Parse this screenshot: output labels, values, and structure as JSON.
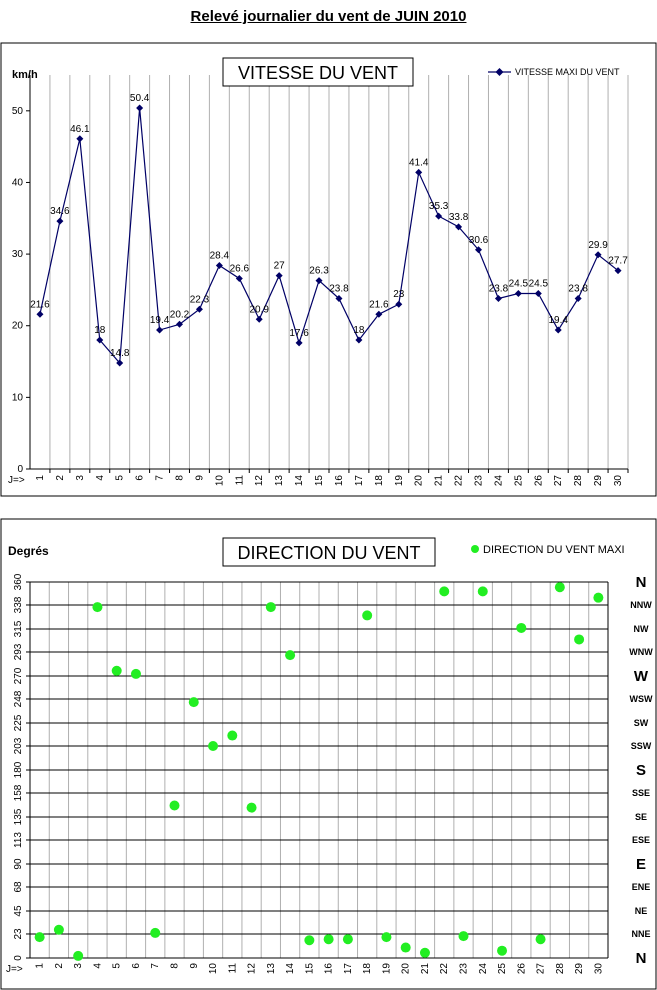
{
  "page_title": "Relevé journalier du vent de JUIN 2010",
  "chart_data": [
    {
      "type": "line",
      "title": "VITESSE DU VENT",
      "ylabel": "km/h",
      "xlabel": "J=>",
      "ylim": [
        0,
        55
      ],
      "yticks": [
        0,
        10,
        20,
        30,
        40,
        50
      ],
      "grid": "vertical",
      "legend_position": "top-right",
      "categories": [
        "1",
        "2",
        "3",
        "4",
        "5",
        "6",
        "7",
        "8",
        "9",
        "10",
        "11",
        "12",
        "13",
        "14",
        "15",
        "16",
        "17",
        "18",
        "19",
        "20",
        "21",
        "22",
        "23",
        "24",
        "25",
        "26",
        "27",
        "28",
        "29",
        "30"
      ],
      "series": [
        {
          "name": "VITESSE MAXI DU VENT",
          "color": "#000066",
          "marker": "diamond",
          "values": [
            21.6,
            34.6,
            46.1,
            18,
            14.8,
            50.4,
            19.4,
            20.2,
            22.3,
            28.4,
            26.6,
            20.9,
            27,
            17.6,
            26.3,
            23.8,
            18,
            21.6,
            23,
            41.4,
            35.3,
            33.8,
            30.6,
            23.8,
            24.5,
            24.5,
            19.4,
            23.8,
            29.9,
            27.7
          ],
          "labels": [
            "21.6",
            "34.6",
            "46.1",
            "18",
            "14.8",
            "50.4",
            "19.4",
            "20.2",
            "22.3",
            "28.4",
            "26.6",
            "20.9",
            "27",
            "17.6",
            "26.3",
            "23.8",
            "18",
            "21.6",
            "23",
            "41.4",
            "35.3",
            "33.8",
            "30.6",
            "23.8",
            "24.5",
            "24.5",
            "19.4",
            "23.8",
            "29.9",
            "27.7"
          ]
        }
      ]
    },
    {
      "type": "scatter",
      "title": "DIRECTION DU VENT",
      "ylabel": "Degrés",
      "xlabel": "J=>",
      "ylim": [
        0,
        360
      ],
      "yticks": [
        0,
        23,
        45,
        68,
        90,
        113,
        135,
        158,
        180,
        203,
        225,
        248,
        270,
        293,
        315,
        338,
        360
      ],
      "compass_labels": [
        "N",
        "NNE",
        "NE",
        "ENE",
        "E",
        "ESE",
        "SE",
        "SSE",
        "S",
        "SSW",
        "SW",
        "WSW",
        "W",
        "WNW",
        "NW",
        "NNW",
        "N"
      ],
      "grid": "both",
      "legend_position": "top-right",
      "categories": [
        "1",
        "2",
        "3",
        "4",
        "5",
        "6",
        "7",
        "8",
        "9",
        "10",
        "11",
        "12",
        "13",
        "14",
        "15",
        "16",
        "17",
        "18",
        "19",
        "20",
        "21",
        "22",
        "23",
        "24",
        "25",
        "26",
        "27",
        "28",
        "29",
        "30"
      ],
      "series": [
        {
          "name": "DIRECTION DU VENT MAXI",
          "color": "#22ee22",
          "values": [
            20,
            27,
            2,
            336,
            275,
            272,
            24,
            146,
            245,
            203,
            213,
            144,
            336,
            290,
            17,
            18,
            18,
            328,
            20,
            10,
            5,
            351,
            21,
            351,
            7,
            316,
            18,
            355,
            305,
            345
          ]
        }
      ]
    }
  ]
}
